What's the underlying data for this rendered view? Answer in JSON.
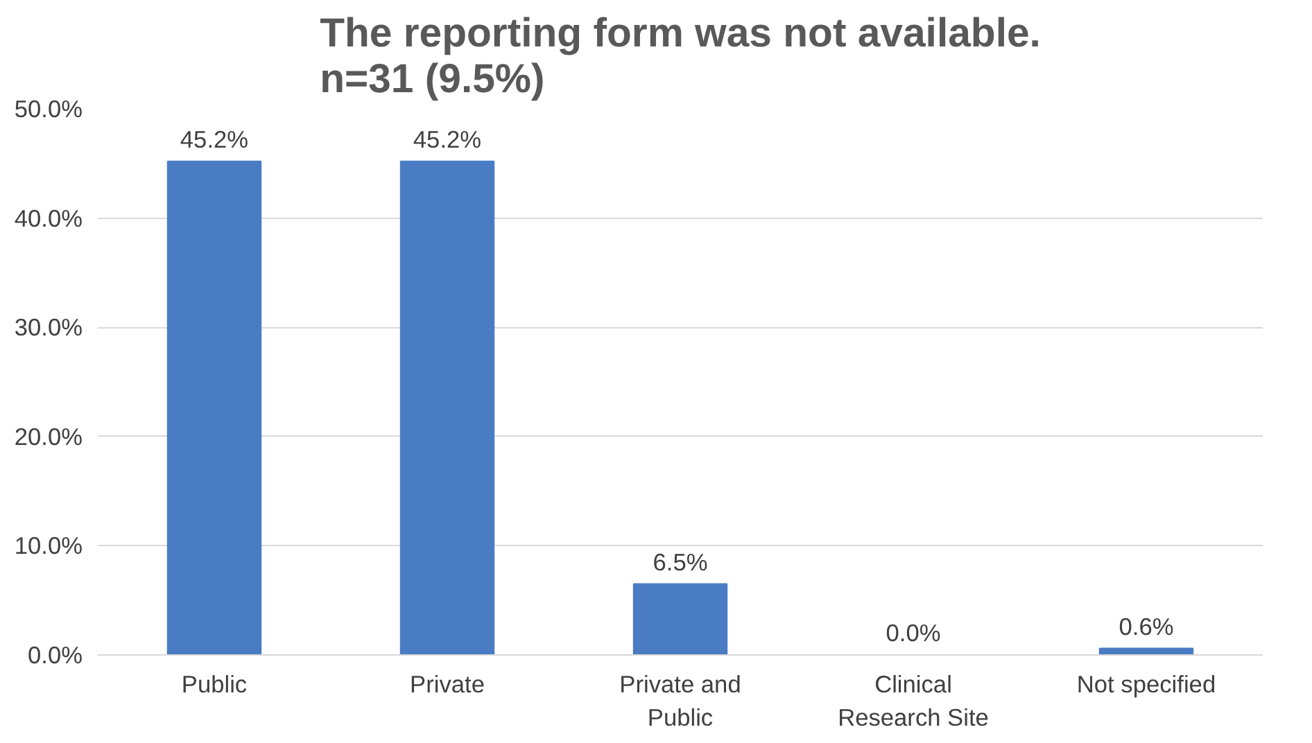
{
  "chart_data": {
    "type": "bar",
    "title": "The reporting form was not available.\nn=31 (9.5%)",
    "categories": [
      "Public",
      "Private",
      "Private and Public",
      "Clinical Research Site",
      "Not specified"
    ],
    "values": [
      45.2,
      45.2,
      6.5,
      0.0,
      0.6
    ],
    "value_labels": [
      "45.2%",
      "45.2%",
      "6.5%",
      "0.0%",
      "0.6%"
    ],
    "color": "#4a7cc4",
    "ylim": [
      0,
      50
    ],
    "yticks": [
      {
        "value": 0,
        "label": "0.0%"
      },
      {
        "value": 10,
        "label": "10.0%"
      },
      {
        "value": 20,
        "label": "20.0%"
      },
      {
        "value": 30,
        "label": "30.0%"
      },
      {
        "value": 40,
        "label": "40.0%"
      },
      {
        "value": 50,
        "label": "50.0%"
      }
    ],
    "grid": "y"
  }
}
